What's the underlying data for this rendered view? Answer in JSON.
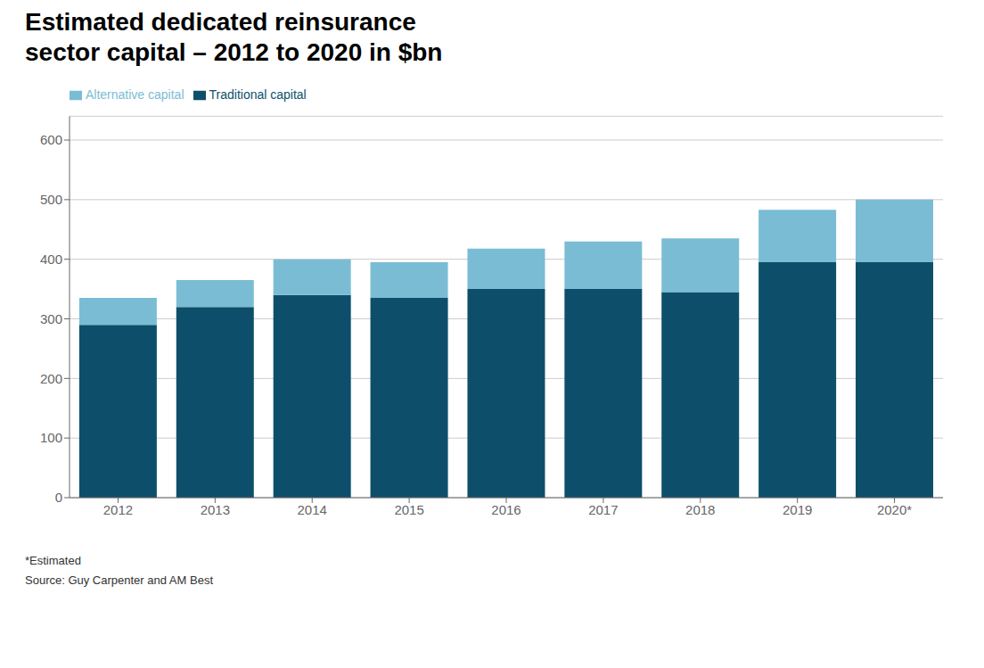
{
  "chart_data": {
    "type": "bar",
    "title": "Estimated dedicated reinsurance\nsector capital – 2012 to 2020 in $bn",
    "categories": [
      "2012",
      "2013",
      "2014",
      "2015",
      "2016",
      "2017",
      "2018",
      "2019",
      "2020*"
    ],
    "series": [
      {
        "name": "Traditional capital",
        "color": "#0d4f6b",
        "values": [
          290,
          320,
          340,
          335,
          350,
          350,
          345,
          395,
          395
        ]
      },
      {
        "name": "Alternative capital",
        "color": "#7bbcd5",
        "values": [
          45,
          45,
          60,
          60,
          68,
          80,
          90,
          88,
          105
        ]
      }
    ],
    "stacked": true,
    "ylim": [
      0,
      640
    ],
    "yticks": [
      0,
      100,
      200,
      300,
      400,
      500,
      600
    ],
    "grid": true,
    "legend": "upper left",
    "annotations": [
      "*Estimated",
      "Source: Guy Carpenter and AM Best"
    ]
  }
}
